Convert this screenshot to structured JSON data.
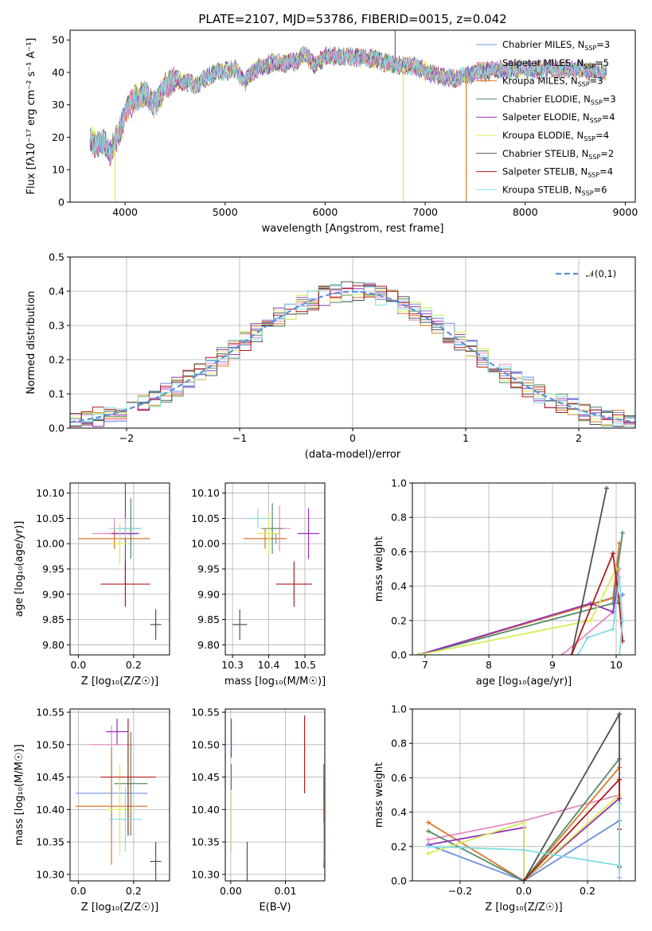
{
  "colors": {
    "Chabrier MILES": "#6f8fdc",
    "Salpeter MILES": "#e48ac4",
    "Kroupa MILES": "#d9792c",
    "Chabrier ELODIE": "#568a68",
    "Salpeter ELODIE": "#9430b8",
    "Kroupa ELODIE": "#d7ec56",
    "Chabrier STELIB": "#505050",
    "Salpeter STELIB": "#b01c1c",
    "Kroupa STELIB": "#84dde2"
  },
  "chart_data": [
    {
      "id": "spectrum",
      "type": "line",
      "title": "PLATE=2107, MJD=53786, FIBERID=0015, z=0.042",
      "xlabel": "wavelength [Angstrom, rest frame]",
      "ylabel": "Flux [fλ10⁻¹⁷ erg cm⁻² s⁻¹ A⁻¹]",
      "xlim": [
        3450,
        9100
      ],
      "ylim": [
        0,
        53
      ],
      "xticks": [
        "4000",
        "5000",
        "6000",
        "7000",
        "8000",
        "9000"
      ],
      "yticks": [
        "0",
        "10",
        "20",
        "30",
        "40",
        "50"
      ],
      "legend_position": "upper-right",
      "legend": [
        {
          "name": "Chabrier MILES",
          "nssp": "3"
        },
        {
          "name": "Salpeter MILES",
          "nssp": "5"
        },
        {
          "name": "Kroupa MILES",
          "nssp": "3"
        },
        {
          "name": "Chabrier ELODIE",
          "nssp": "3"
        },
        {
          "name": "Salpeter ELODIE",
          "nssp": "4"
        },
        {
          "name": "Kroupa ELODIE",
          "nssp": "4"
        },
        {
          "name": "Chabrier STELIB",
          "nssp": "2"
        },
        {
          "name": "Salpeter STELIB",
          "nssp": "4"
        },
        {
          "name": "Kroupa STELIB",
          "nssp": "6"
        }
      ],
      "continuum": [
        [
          3650,
          20
        ],
        [
          3700,
          18
        ],
        [
          3800,
          18
        ],
        [
          3850,
          15
        ],
        [
          3950,
          22
        ],
        [
          4000,
          28
        ],
        [
          4100,
          32
        ],
        [
          4200,
          33
        ],
        [
          4300,
          30
        ],
        [
          4400,
          36
        ],
        [
          4500,
          38
        ],
        [
          4700,
          36
        ],
        [
          4900,
          40
        ],
        [
          5100,
          41
        ],
        [
          5200,
          37
        ],
        [
          5300,
          41
        ],
        [
          5500,
          43
        ],
        [
          5700,
          43
        ],
        [
          5800,
          46
        ],
        [
          5900,
          42
        ],
        [
          6000,
          45
        ],
        [
          6200,
          45
        ],
        [
          6500,
          44
        ],
        [
          6700,
          42
        ],
        [
          6900,
          42
        ],
        [
          7100,
          39
        ],
        [
          7300,
          38
        ],
        [
          7500,
          40
        ],
        [
          7800,
          41
        ],
        [
          8000,
          41
        ],
        [
          8200,
          41
        ],
        [
          8500,
          41
        ],
        [
          8800,
          40
        ]
      ],
      "spikes": [
        {
          "x": 3900,
          "y": 0
        },
        {
          "x": 6780,
          "y": 0
        },
        {
          "x": 7410,
          "y": 0
        },
        {
          "x": 6700,
          "y": 52
        }
      ]
    },
    {
      "id": "residuals",
      "type": "histogram",
      "xlabel": "(data-model)/error",
      "ylabel": "Normed distribution",
      "xlim": [
        -2.5,
        2.5
      ],
      "ylim": [
        0,
        0.5
      ],
      "xticks": [
        "−2",
        "−1",
        "0",
        "1",
        "2"
      ],
      "yticks": [
        "0.0",
        "0.1",
        "0.2",
        "0.3",
        "0.4",
        "0.5"
      ],
      "legend": [
        "𝒩(0,1)"
      ],
      "legend_position": "upper-right",
      "bin_width": 0.1,
      "reference_curve": "normal(0,1)"
    },
    {
      "id": "age_vs_Z",
      "type": "scatter",
      "xlabel": "Z [log₁₀(Z/Z☉)]",
      "ylabel": "age  [log₁₀(age/yr)]",
      "xlim": [
        -0.03,
        0.33
      ],
      "ylim": [
        9.78,
        10.12
      ],
      "xticks": [
        "0.0",
        "0.2"
      ],
      "yticks": [
        "9.80",
        "9.85",
        "9.90",
        "9.95",
        "10.00",
        "10.05",
        "10.10"
      ],
      "points": [
        {
          "series": "Chabrier MILES",
          "x": 0.15,
          "y": 10.02,
          "xerr": 0.06,
          "yerr": 0.02
        },
        {
          "series": "Salpeter MILES",
          "x": 0.13,
          "y": 10.02,
          "xerr": 0.08,
          "yerr": 0.03
        },
        {
          "series": "Kroupa MILES",
          "x": 0.13,
          "y": 10.01,
          "xerr": 0.13,
          "yerr": 0.02
        },
        {
          "series": "Chabrier ELODIE",
          "x": 0.19,
          "y": 10.03,
          "xerr": 0.03,
          "yerr": 0.06
        },
        {
          "series": "Salpeter ELODIE",
          "x": 0.17,
          "y": 10.02,
          "xerr": 0.05,
          "yerr": 0.1
        },
        {
          "series": "Kroupa ELODIE",
          "x": 0.15,
          "y": 10.0,
          "xerr": 0.03,
          "yerr": 0.04
        },
        {
          "series": "Chabrier STELIB",
          "x": 0.28,
          "y": 9.84,
          "xerr": 0.02,
          "yerr": 0.03
        },
        {
          "series": "Salpeter STELIB",
          "x": 0.17,
          "y": 9.92,
          "xerr": 0.09,
          "yerr": 0.045
        },
        {
          "series": "Kroupa STELIB",
          "x": 0.17,
          "y": 10.03,
          "xerr": 0.06,
          "yerr": 0.02
        }
      ]
    },
    {
      "id": "age_vs_mass",
      "type": "scatter",
      "xlabel": "mass [log₁₀(M/M☉)]",
      "ylabel": "",
      "xlim": [
        10.28,
        10.555
      ],
      "ylim": [
        9.78,
        10.12
      ],
      "xticks": [
        "10.3",
        "10.4",
        "10.5"
      ],
      "yticks": [
        "9.80",
        "9.85",
        "9.90",
        "9.95",
        "10.00",
        "10.05",
        "10.10"
      ],
      "points": [
        {
          "series": "Chabrier MILES",
          "x": 10.42,
          "y": 10.01,
          "xerr": 0.02,
          "yerr": 0.01
        },
        {
          "series": "Salpeter MILES",
          "x": 10.43,
          "y": 10.03,
          "xerr": 0.03,
          "yerr": 0.045
        },
        {
          "series": "Kroupa MILES",
          "x": 10.39,
          "y": 10.01,
          "xerr": 0.06,
          "yerr": 0.02
        },
        {
          "series": "Chabrier ELODIE",
          "x": 10.41,
          "y": 10.03,
          "xerr": 0.03,
          "yerr": 0.05
        },
        {
          "series": "Salpeter ELODIE",
          "x": 10.51,
          "y": 10.02,
          "xerr": 0.03,
          "yerr": 0.05
        },
        {
          "series": "Kroupa ELODIE",
          "x": 10.4,
          "y": 10.02,
          "xerr": 0.03,
          "yerr": 0.04
        },
        {
          "series": "Chabrier STELIB",
          "x": 10.32,
          "y": 9.84,
          "xerr": 0.02,
          "yerr": 0.03
        },
        {
          "series": "Salpeter STELIB",
          "x": 10.47,
          "y": 9.92,
          "xerr": 0.05,
          "yerr": 0.045
        },
        {
          "series": "Kroupa STELIB",
          "x": 10.37,
          "y": 10.05,
          "xerr": 0.03,
          "yerr": 0.02
        }
      ]
    },
    {
      "id": "weight_vs_age",
      "type": "line",
      "xlabel": "age  [log₁₀(age/yr)]",
      "ylabel": "mass weight",
      "xlim": [
        6.8,
        10.3
      ],
      "ylim": [
        0,
        1
      ],
      "xticks": [
        "7",
        "8",
        "9",
        "10"
      ],
      "yticks": [
        "0.0",
        "0.2",
        "0.4",
        "0.6",
        "0.8",
        "1.0"
      ],
      "series": [
        {
          "name": "Chabrier MILES",
          "points": [
            [
              6.9,
              0.0
            ],
            [
              10.1,
              0.35
            ],
            [
              10.0,
              0.3
            ]
          ]
        },
        {
          "name": "Salpeter MILES",
          "points": [
            [
              9.15,
              0.0
            ],
            [
              9.95,
              0.25
            ],
            [
              10.05,
              0.5
            ]
          ]
        },
        {
          "name": "Kroupa MILES",
          "points": [
            [
              6.9,
              0.0
            ],
            [
              9.95,
              0.33
            ],
            [
              10.05,
              0.65
            ]
          ]
        },
        {
          "name": "Chabrier ELODIE",
          "points": [
            [
              6.9,
              0.0
            ],
            [
              9.95,
              0.3
            ],
            [
              10.1,
              0.71
            ]
          ]
        },
        {
          "name": "Salpeter ELODIE",
          "points": [
            [
              6.9,
              0.0
            ],
            [
              9.6,
              0.3
            ],
            [
              9.95,
              0.25
            ],
            [
              10.05,
              0.45
            ]
          ]
        },
        {
          "name": "Kroupa ELODIE",
          "points": [
            [
              6.9,
              0.0
            ],
            [
              9.6,
              0.2
            ],
            [
              10.0,
              0.5
            ]
          ]
        },
        {
          "name": "Chabrier STELIB",
          "points": [
            [
              9.3,
              0.0
            ],
            [
              9.85,
              0.97
            ]
          ]
        },
        {
          "name": "Salpeter STELIB",
          "points": [
            [
              9.3,
              0.0
            ],
            [
              9.95,
              0.59
            ],
            [
              10.05,
              0.3
            ],
            [
              10.1,
              0.08
            ]
          ]
        },
        {
          "name": "Kroupa STELIB",
          "points": [
            [
              9.4,
              0.0
            ],
            [
              9.55,
              0.1
            ],
            [
              9.95,
              0.15
            ],
            [
              10.05,
              0.45
            ],
            [
              10.1,
              0.2
            ],
            [
              10.05,
              0.0
            ]
          ]
        }
      ]
    },
    {
      "id": "mass_vs_Z",
      "type": "scatter",
      "xlabel": "Z [log₁₀(Z/Z☉)]",
      "ylabel": "mass [log₁₀(M/M☉)]",
      "xlim": [
        -0.03,
        0.33
      ],
      "ylim": [
        10.29,
        10.555
      ],
      "xticks": [
        "0.0",
        "0.2"
      ],
      "yticks": [
        "10.30",
        "10.35",
        "10.40",
        "10.45",
        "10.50",
        "10.55"
      ],
      "points": [
        {
          "series": "Chabrier MILES",
          "x": 0.12,
          "y": 10.425,
          "xerr": 0.13,
          "yerr": 0.05
        },
        {
          "series": "Salpeter MILES",
          "x": 0.12,
          "y": 10.5,
          "xerr": 0.08,
          "yerr": 0.03
        },
        {
          "series": "Kroupa MILES",
          "x": 0.12,
          "y": 10.405,
          "xerr": 0.13,
          "yerr": 0.09
        },
        {
          "series": "Chabrier ELODIE",
          "x": 0.19,
          "y": 10.44,
          "xerr": 0.06,
          "yerr": 0.08
        },
        {
          "series": "Salpeter ELODIE",
          "x": 0.14,
          "y": 10.52,
          "xerr": 0.04,
          "yerr": 0.02
        },
        {
          "series": "Kroupa ELODIE",
          "x": 0.15,
          "y": 10.4,
          "xerr": 0.05,
          "yerr": 0.07
        },
        {
          "series": "Chabrier STELIB",
          "x": 0.28,
          "y": 10.32,
          "xerr": 0.02,
          "yerr": 0.03
        },
        {
          "series": "Salpeter STELIB",
          "x": 0.18,
          "y": 10.45,
          "xerr": 0.1,
          "yerr": 0.09
        },
        {
          "series": "Kroupa STELIB",
          "x": 0.17,
          "y": 10.385,
          "xerr": 0.06,
          "yerr": 0.05
        }
      ]
    },
    {
      "id": "mass_vs_ebv",
      "type": "scatter",
      "xlabel": "E(B-V)",
      "ylabel": "",
      "xlim": [
        -0.001,
        0.0172
      ],
      "ylim": [
        10.29,
        10.555
      ],
      "xticks": [
        "0.00",
        "0.01"
      ],
      "yticks": [
        "10.30",
        "10.35",
        "10.40",
        "10.45",
        "10.50",
        "10.55"
      ],
      "points": [
        {
          "series": "Chabrier MILES",
          "x": 0.017,
          "y": 10.44,
          "xerr": 0,
          "yerr": 0.03
        },
        {
          "series": "Salpeter MILES",
          "x": 0.017,
          "y": 10.39,
          "xerr": 0,
          "yerr": 0.02
        },
        {
          "series": "Kroupa MILES",
          "x": 0.017,
          "y": 10.38,
          "xerr": 0,
          "yerr": 0.07
        },
        {
          "series": "Chabrier ELODIE",
          "x": 0.0001,
          "y": 10.45,
          "xerr": 0,
          "yerr": 0.02
        },
        {
          "series": "Salpeter ELODIE",
          "x": 0.0001,
          "y": 10.51,
          "xerr": 0,
          "yerr": 0.03
        },
        {
          "series": "Kroupa ELODIE",
          "x": 0.0001,
          "y": 10.38,
          "xerr": 0,
          "yerr": 0.045
        },
        {
          "series": "Chabrier STELIB",
          "x": 0.003,
          "y": 10.32,
          "xerr": 0,
          "yerr": 0.03
        },
        {
          "series": "Salpeter STELIB",
          "x": 0.0135,
          "y": 10.485,
          "xerr": 0,
          "yerr": 0.06
        },
        {
          "series": "Kroupa STELIB",
          "x": 0.017,
          "y": 10.35,
          "xerr": 0,
          "yerr": 0.03
        }
      ]
    },
    {
      "id": "weight_vs_Z",
      "type": "line",
      "xlabel": "Z [log₁₀(Z/Z☉)]",
      "ylabel": "mass weight",
      "xlim": [
        -0.35,
        0.35
      ],
      "ylim": [
        0,
        1
      ],
      "xticks": [
        "−0.2",
        "0.0",
        "0.2"
      ],
      "yticks": [
        "0.0",
        "0.2",
        "0.4",
        "0.6",
        "0.8",
        "1.0"
      ],
      "series": [
        {
          "name": "Chabrier MILES",
          "points": [
            [
              -0.3,
              0.21
            ],
            [
              0.0,
              0.0
            ],
            [
              0.3,
              0.35
            ]
          ]
        },
        {
          "name": "Salpeter MILES",
          "points": [
            [
              -0.3,
              0.24
            ],
            [
              0.0,
              0.35
            ],
            [
              0.3,
              0.5
            ],
            [
              0.3,
              0.02
            ]
          ]
        },
        {
          "name": "Kroupa MILES",
          "points": [
            [
              -0.3,
              0.34
            ],
            [
              0.0,
              0.0
            ],
            [
              0.3,
              0.66
            ]
          ]
        },
        {
          "name": "Chabrier ELODIE",
          "points": [
            [
              -0.3,
              0.29
            ],
            [
              0.0,
              0.0
            ],
            [
              0.3,
              0.71
            ]
          ]
        },
        {
          "name": "Salpeter ELODIE",
          "points": [
            [
              -0.3,
              0.21
            ],
            [
              0.0,
              0.31
            ],
            [
              0.0,
              0.0
            ],
            [
              0.3,
              0.48
            ]
          ]
        },
        {
          "name": "Kroupa ELODIE",
          "points": [
            [
              -0.3,
              0.16
            ],
            [
              0.0,
              0.34
            ],
            [
              0.0,
              0.0
            ],
            [
              0.3,
              0.5
            ]
          ]
        },
        {
          "name": "Chabrier STELIB",
          "points": [
            [
              0.0,
              0.0
            ],
            [
              0.3,
              0.97
            ],
            [
              0.3,
              0.08
            ]
          ]
        },
        {
          "name": "Salpeter STELIB",
          "points": [
            [
              0.0,
              0.0
            ],
            [
              0.3,
              0.59
            ],
            [
              0.3,
              0.3
            ]
          ]
        },
        {
          "name": "Kroupa STELIB",
          "points": [
            [
              -0.3,
              0.2
            ],
            [
              0.0,
              0.18
            ],
            [
              0.3,
              0.09
            ],
            [
              0.3,
              0.45
            ],
            [
              0.3,
              0.0
            ]
          ]
        }
      ]
    }
  ]
}
